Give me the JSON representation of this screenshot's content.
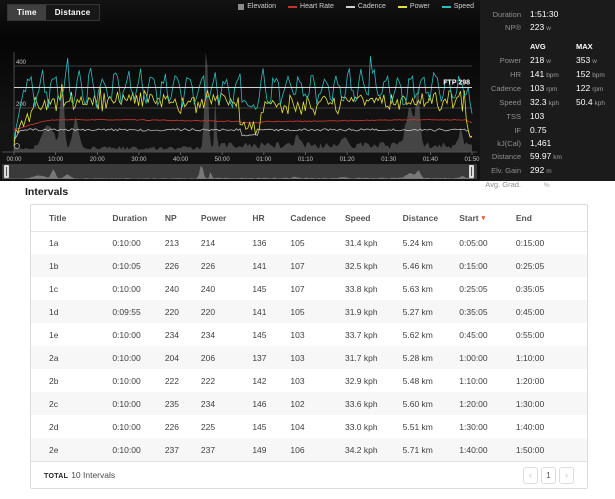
{
  "colors": {
    "speed": "#2bbcbc",
    "power": "#e3e23a",
    "heart_rate": "#c2342c",
    "cadence": "#d2d2d2",
    "elevation": "#8a8a8a",
    "ftp_line": "#f0f0f0",
    "sort_caret": "#f0552d"
  },
  "chart": {
    "tabs": [
      {
        "label": "Time",
        "active": true
      },
      {
        "label": "Distance",
        "active": false
      }
    ],
    "legend": [
      {
        "label": "Elevation",
        "color": "#8a8a8a",
        "shape": "box"
      },
      {
        "label": "Heart Rate",
        "color": "#c2342c",
        "shape": "line"
      },
      {
        "label": "Cadence",
        "color": "#d2d2d2",
        "shape": "line"
      },
      {
        "label": "Power",
        "color": "#e3e23a",
        "shape": "line"
      },
      {
        "label": "Speed",
        "color": "#2bbcbc",
        "shape": "line"
      }
    ]
  },
  "chart_data": {
    "type": "line",
    "title": "",
    "xlabel": "Time",
    "x_ticks": [
      "00:00",
      "10:00",
      "20:00",
      "30:00",
      "40:00",
      "50:00",
      "01:00",
      "01:10",
      "01:20",
      "01:30",
      "01:40",
      "01:50"
    ],
    "y_gridlines": [
      400,
      200
    ],
    "y_tick_labels": [
      "400",
      "200"
    ],
    "ftp": 298,
    "ftp_label": "FTP 298",
    "duration_minutes": 111.5,
    "legend_position": "top-right",
    "series": [
      {
        "name": "Speed",
        "avg": 32.3,
        "max": 50.4,
        "unit": "kph"
      },
      {
        "name": "Power",
        "avg": 218,
        "max": 353,
        "unit": "w"
      },
      {
        "name": "Heart Rate",
        "avg": 141,
        "max": 152,
        "unit": "bpm"
      },
      {
        "name": "Cadence",
        "avg": 103,
        "max": 122,
        "unit": "rpm"
      },
      {
        "name": "Elevation",
        "gain": 292,
        "unit": "m"
      }
    ]
  },
  "stats": {
    "rows_top": [
      {
        "label": "Duration",
        "value": "1:51:30",
        "unit": ""
      },
      {
        "label": "NP®",
        "value": "223",
        "unit": "w"
      }
    ],
    "avg_max_header": {
      "avg": "AVG",
      "max": "MAX"
    },
    "rows_avg_max": [
      {
        "label": "Power",
        "avg": "218",
        "avg_unit": "w",
        "max": "353",
        "max_unit": "w"
      },
      {
        "label": "HR",
        "avg": "141",
        "avg_unit": "bpm",
        "max": "152",
        "max_unit": "bpm"
      },
      {
        "label": "Cadence",
        "avg": "103",
        "avg_unit": "rpm",
        "max": "122",
        "max_unit": "rpm"
      },
      {
        "label": "Speed",
        "avg": "32.3",
        "avg_unit": "kph",
        "max": "50.4",
        "max_unit": "kph"
      }
    ],
    "rows_bottom": [
      {
        "label": "TSS",
        "value": "103",
        "unit": ""
      },
      {
        "label": "IF",
        "value": "0.75",
        "unit": ""
      },
      {
        "label": "kJ(Cal)",
        "value": "1,461",
        "unit": ""
      },
      {
        "label": "Distance",
        "value": "59.97",
        "unit": "km"
      },
      {
        "label": "Elv. Gain",
        "value": "292",
        "unit": "m"
      },
      {
        "label": "Avg. Grad.",
        "value": "0.0",
        "unit": "%"
      }
    ]
  },
  "intervals": {
    "title": "Intervals",
    "columns": [
      "Title",
      "Duration",
      "NP",
      "Power",
      "HR",
      "Cadence",
      "Speed",
      "Distance",
      "Start",
      "End"
    ],
    "sort_column": "Start",
    "sort_caret": "▾",
    "rows": [
      [
        "1a",
        "0:10:00",
        "213",
        "214",
        "136",
        "105",
        "31.4 kph",
        "5.24 km",
        "0:05:00",
        "0:15:00"
      ],
      [
        "1b",
        "0:10:05",
        "226",
        "226",
        "141",
        "107",
        "32.5 kph",
        "5.46 km",
        "0:15:00",
        "0:25:05"
      ],
      [
        "1c",
        "0:10:00",
        "240",
        "240",
        "145",
        "107",
        "33.8 kph",
        "5.63 km",
        "0:25:05",
        "0:35:05"
      ],
      [
        "1d",
        "0:09:55",
        "220",
        "220",
        "141",
        "105",
        "31.9 kph",
        "5.27 km",
        "0:35:05",
        "0:45:00"
      ],
      [
        "1e",
        "0:10:00",
        "234",
        "234",
        "145",
        "103",
        "33.7 kph",
        "5.62 km",
        "0:45:00",
        "0:55:00"
      ],
      [
        "2a",
        "0:10:00",
        "204",
        "206",
        "137",
        "103",
        "31.7 kph",
        "5.28 km",
        "1:00:00",
        "1:10:00"
      ],
      [
        "2b",
        "0:10:00",
        "222",
        "222",
        "142",
        "103",
        "32.9 kph",
        "5.48 km",
        "1:10:00",
        "1:20:00"
      ],
      [
        "2c",
        "0:10:00",
        "235",
        "234",
        "146",
        "102",
        "33.6 kph",
        "5.60 km",
        "1:20:00",
        "1:30:00"
      ],
      [
        "2d",
        "0:10:00",
        "226",
        "225",
        "145",
        "104",
        "33.0 kph",
        "5.51 km",
        "1:30:00",
        "1:40:00"
      ],
      [
        "2e",
        "0:10:00",
        "237",
        "237",
        "149",
        "106",
        "34.2 kph",
        "5.71 km",
        "1:40:00",
        "1:50:00"
      ]
    ],
    "footer": {
      "total_label": "TOTAL",
      "total_text": "10 Intervals",
      "pager": {
        "prev": "‹",
        "page": "1",
        "next": "›"
      }
    }
  }
}
